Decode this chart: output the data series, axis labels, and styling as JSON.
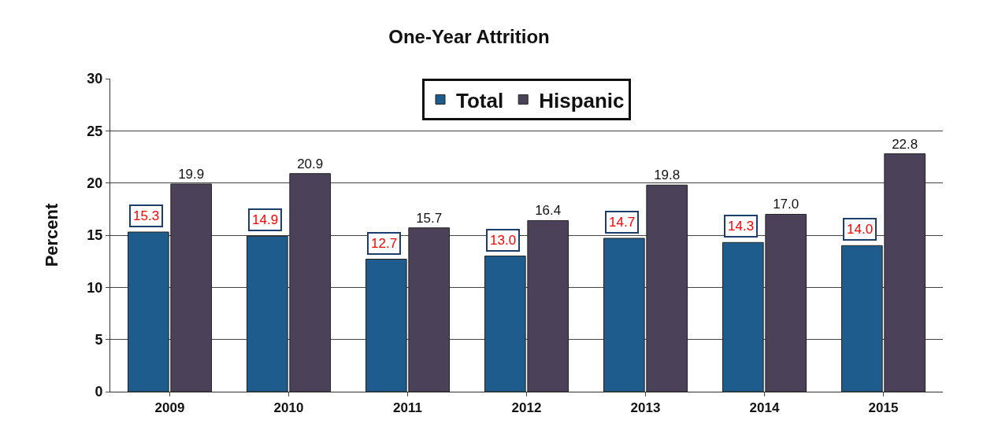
{
  "chart_data": {
    "type": "bar",
    "title": "One-Year Attrition",
    "ylabel": "Percent",
    "categories": [
      "2009",
      "2010",
      "2011",
      "2012",
      "2013",
      "2014",
      "2015"
    ],
    "series": [
      {
        "name": "Total",
        "color": "#1d5c8c",
        "values": [
          15.3,
          14.9,
          12.7,
          13.0,
          14.7,
          14.3,
          14.0
        ],
        "value_labels": [
          "15.3",
          "14.9",
          "12.7",
          "13.0",
          "14.7",
          "14.3",
          "14.0"
        ]
      },
      {
        "name": "Hispanic",
        "color": "#4b4259",
        "values": [
          19.9,
          20.9,
          15.7,
          16.4,
          19.8,
          17.0,
          22.8
        ],
        "value_labels": [
          "19.9",
          "20.9",
          "15.7",
          "16.4",
          "19.8",
          "17.0",
          "22.8"
        ]
      }
    ],
    "ylim": [
      0,
      30
    ],
    "yticks": [
      0,
      5,
      10,
      15,
      20,
      25,
      30
    ],
    "grid": "y",
    "legend": "top"
  }
}
